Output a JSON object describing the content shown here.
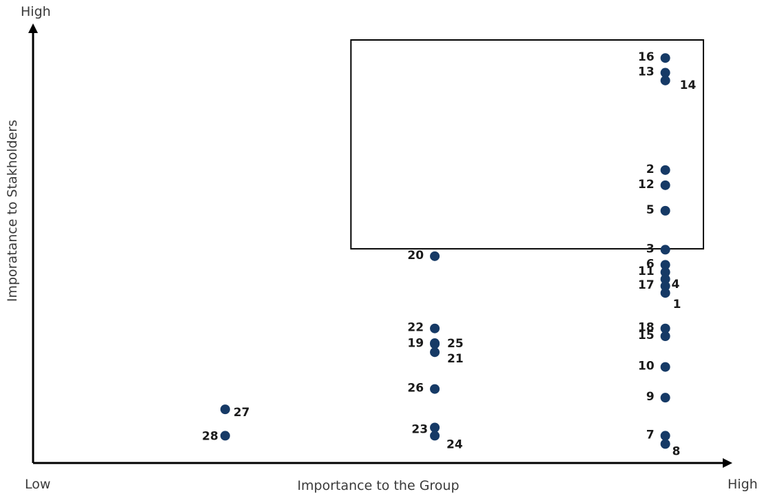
{
  "chart_data": {
    "type": "scatter",
    "title": "",
    "xlabel": "Importance to the Group",
    "ylabel": "Imporatance to Stakholders",
    "x_low_label": "Low",
    "x_high_label": "High",
    "y_high_label": "High",
    "xlim": [
      0,
      100
    ],
    "ylim": [
      0,
      100
    ],
    "grid": false,
    "highlight_box": {
      "x": [
        45.5,
        100
      ],
      "y": [
        49.5,
        100
      ]
    },
    "points": [
      {
        "label": "1",
        "x": 90.5,
        "y": 39.3
      },
      {
        "label": "2",
        "x": 90.5,
        "y": 67.7
      },
      {
        "label": "3",
        "x": 90.5,
        "y": 49.3
      },
      {
        "label": "4",
        "x": 90.5,
        "y": 42.5
      },
      {
        "label": "5",
        "x": 90.5,
        "y": 58.3
      },
      {
        "label": "6",
        "x": 90.5,
        "y": 45.8
      },
      {
        "label": "7",
        "x": 90.5,
        "y": 6.3
      },
      {
        "label": "8",
        "x": 90.5,
        "y": 4.4
      },
      {
        "label": "9",
        "x": 90.5,
        "y": 15.1
      },
      {
        "label": "10",
        "x": 90.5,
        "y": 22.2
      },
      {
        "label": "11",
        "x": 90.5,
        "y": 44.1
      },
      {
        "label": "12",
        "x": 90.5,
        "y": 64.2
      },
      {
        "label": "13",
        "x": 90.5,
        "y": 90.2
      },
      {
        "label": "14",
        "x": 90.5,
        "y": 88.4
      },
      {
        "label": "15",
        "x": 90.5,
        "y": 29.3
      },
      {
        "label": "16",
        "x": 90.5,
        "y": 93.6
      },
      {
        "label": "17",
        "x": 90.5,
        "y": 40.9
      },
      {
        "label": "18",
        "x": 90.5,
        "y": 31.1
      },
      {
        "label": "19",
        "x": 57.5,
        "y": 27.5
      },
      {
        "label": "20",
        "x": 57.5,
        "y": 47.8
      },
      {
        "label": "21",
        "x": 57.5,
        "y": 25.6
      },
      {
        "label": "22",
        "x": 57.5,
        "y": 31.1
      },
      {
        "label": "23",
        "x": 57.5,
        "y": 8.2
      },
      {
        "label": "24",
        "x": 57.5,
        "y": 6.3
      },
      {
        "label": "25",
        "x": 57.5,
        "y": 27.7
      },
      {
        "label": "26",
        "x": 57.5,
        "y": 17.1
      },
      {
        "label": "27",
        "x": 27.5,
        "y": 12.4
      },
      {
        "label": "28",
        "x": 27.5,
        "y": 6.3
      }
    ]
  }
}
